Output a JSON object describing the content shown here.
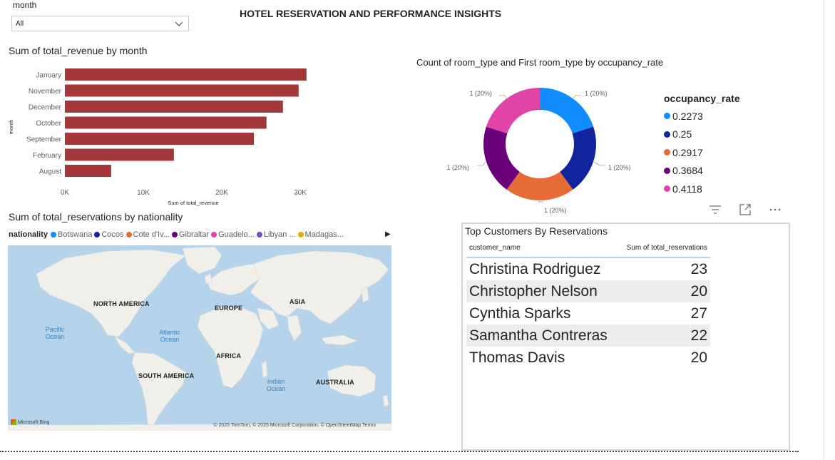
{
  "page_title": "HOTEL RESERVATION AND PERFORMANCE INSIGHTS",
  "slicer": {
    "label": "month",
    "value": "All"
  },
  "bar_chart": {
    "title": "Sum of total_revenue by month",
    "chart_data": {
      "type": "bar",
      "orientation": "horizontal",
      "categories": [
        "January",
        "November",
        "December",
        "October",
        "September",
        "February",
        "August"
      ],
      "values": [
        30800,
        29800,
        27800,
        25700,
        24100,
        13900,
        5900
      ],
      "xlabel": "Sum of total_revenue",
      "ylabel": "month",
      "xticks": [
        "0K",
        "10K",
        "20K",
        "30K"
      ],
      "xlim": [
        0,
        32000
      ],
      "color": "#a4373a"
    }
  },
  "donut_chart": {
    "title": "Count of room_type and First room_type by occupancy_rate",
    "legend_title": "occupancy_rate",
    "chart_data": {
      "type": "pie",
      "donut": true,
      "categories": [
        "0.2273",
        "0.25",
        "0.2917",
        "0.3684",
        "0.4118"
      ],
      "values": [
        1,
        1,
        1,
        1,
        1
      ],
      "labels": [
        "1 (20%)",
        "1 (20%)",
        "1 (20%)",
        "1 (20%)",
        "1 (20%)"
      ],
      "colors": [
        "#118dff",
        "#12239e",
        "#e66c37",
        "#6b007b",
        "#e044a7"
      ],
      "legend_position": "right"
    }
  },
  "visual_icons": [
    "filter-icon",
    "focus-mode-icon",
    "more-options-icon"
  ],
  "map": {
    "title": "Sum of total_reservations by nationality",
    "legend_title": "nationality",
    "legend_items": [
      {
        "name": "Botswana",
        "color": "#118dff"
      },
      {
        "name": "Cocos",
        "color": "#12239e"
      },
      {
        "name": "Cote d'Iv...",
        "color": "#e66c37"
      },
      {
        "name": "Gibraltar",
        "color": "#6b007b"
      },
      {
        "name": "Guadelo...",
        "color": "#e044a7"
      },
      {
        "name": "Libyan ...",
        "color": "#744ec2"
      },
      {
        "name": "Madagas...",
        "color": "#d9b300"
      }
    ],
    "continents": {
      "north_america": "NORTH AMERICA",
      "europe": "EUROPE",
      "asia": "ASIA",
      "africa": "AFRICA",
      "south_america": "SOUTH AMERICA",
      "australia": "AUSTRALIA"
    },
    "oceans": {
      "pacific": "Pacific Ocean",
      "atlantic": "Atlantic Ocean",
      "indian": "Indian Ocean"
    },
    "copyright": "© 2025 TomTom, © 2025 Microsoft Corporation, © OpenStreetMap  Terms",
    "brand": "Microsoft Bing"
  },
  "table": {
    "title": "Top Customers By Reservations",
    "columns": [
      "customer_name",
      "Sum of total_reservations"
    ],
    "rows": [
      {
        "name": "Christina Rodriguez",
        "value": "23"
      },
      {
        "name": "Christopher Nelson",
        "value": "20"
      },
      {
        "name": "Cynthia Sparks",
        "value": "27"
      },
      {
        "name": "Samantha Contreras",
        "value": "22"
      },
      {
        "name": "Thomas Davis",
        "value": "20"
      }
    ]
  }
}
